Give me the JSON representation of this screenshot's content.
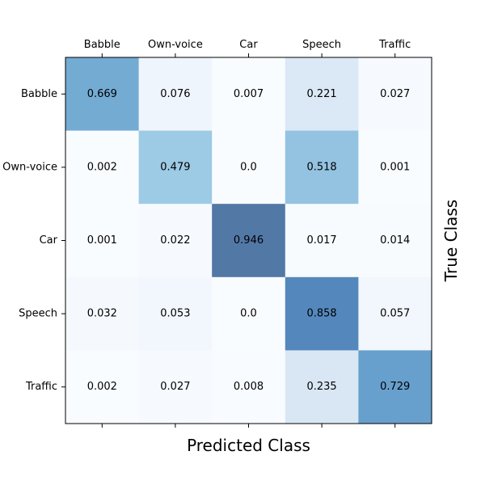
{
  "chart_data": {
    "type": "heatmap",
    "title": "",
    "xlabel": "Predicted Class",
    "ylabel": "True Class",
    "x_categories": [
      "Babble",
      "Own-voice",
      "Car",
      "Speech",
      "Traffic"
    ],
    "y_categories": [
      "Babble",
      "Own-voice",
      "Car",
      "Speech",
      "Traffic"
    ],
    "values": [
      [
        0.669,
        0.076,
        0.007,
        0.221,
        0.027
      ],
      [
        0.002,
        0.479,
        0.0,
        0.518,
        0.001
      ],
      [
        0.001,
        0.022,
        0.946,
        0.017,
        0.014
      ],
      [
        0.032,
        0.053,
        0.0,
        0.858,
        0.057
      ],
      [
        0.002,
        0.027,
        0.008,
        0.235,
        0.729
      ]
    ],
    "value_labels": [
      [
        "0.669",
        "0.076",
        "0.007",
        "0.221",
        "0.027"
      ],
      [
        "0.002",
        "0.479",
        "0.0",
        "0.518",
        "0.001"
      ],
      [
        "0.001",
        "0.022",
        "0.946",
        "0.017",
        "0.014"
      ],
      [
        "0.032",
        "0.053",
        "0.0",
        "0.858",
        "0.057"
      ],
      [
        "0.002",
        "0.027",
        "0.008",
        "0.235",
        "0.729"
      ]
    ],
    "colormap": "Blues",
    "value_range": [
      0,
      1
    ],
    "x_tick_position": "top",
    "y_label_position": "right",
    "grid": false
  }
}
